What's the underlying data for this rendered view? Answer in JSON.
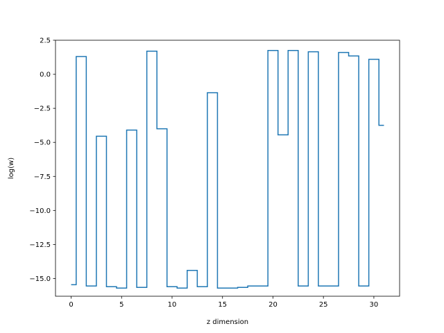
{
  "chart_data": {
    "type": "line",
    "drawstyle": "steps-mid",
    "xlabel": "z dimension",
    "ylabel": "log(w)",
    "xlim": [
      -1.55,
      32.55
    ],
    "ylim": [
      -16.3,
      2.5
    ],
    "x_ticks": [
      0,
      5,
      10,
      15,
      20,
      25,
      30
    ],
    "x_tick_labels": [
      "0",
      "5",
      "10",
      "15",
      "20",
      "25",
      "30"
    ],
    "y_ticks": [
      2.5,
      0.0,
      -2.5,
      -5.0,
      -7.5,
      -10.0,
      -12.5,
      -15.0
    ],
    "y_tick_labels": [
      "2.5",
      "0.0",
      "−2.5",
      "−5.0",
      "−7.5",
      "−10.0",
      "−12.5",
      "−15.0"
    ],
    "grid": false,
    "series": [
      {
        "color": "#1f77b4",
        "x": [
          0,
          1,
          2,
          3,
          4,
          5,
          6,
          7,
          8,
          9,
          10,
          11,
          12,
          13,
          14,
          15,
          16,
          17,
          18,
          19,
          20,
          21,
          22,
          23,
          24,
          25,
          26,
          27,
          28,
          29,
          30,
          31
        ],
        "y": [
          -15.45,
          1.3,
          -15.55,
          -4.55,
          -15.6,
          -15.7,
          -4.1,
          -15.65,
          1.7,
          -4.0,
          -15.6,
          -15.7,
          -14.4,
          -15.6,
          -1.35,
          -15.7,
          -15.7,
          -15.65,
          -15.55,
          -15.55,
          1.75,
          -4.45,
          1.75,
          -15.55,
          1.65,
          -15.55,
          -15.55,
          1.6,
          1.35,
          -15.55,
          1.1,
          -3.75
        ]
      }
    ]
  }
}
